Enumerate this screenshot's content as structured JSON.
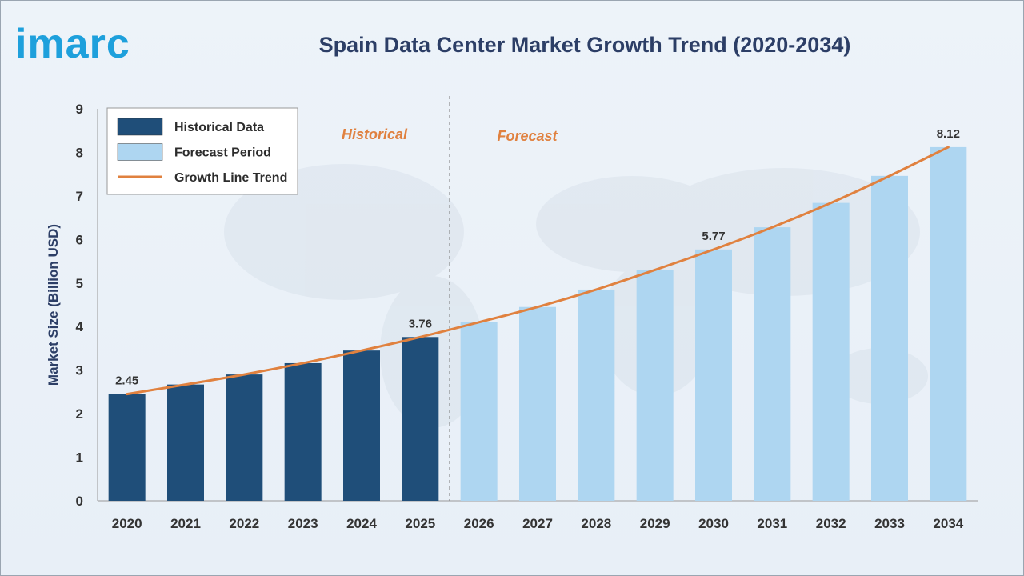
{
  "brand": {
    "logo_text": "imarc"
  },
  "colors": {
    "historical": "#1f4e79",
    "forecast": "#aed6f1",
    "trend": "#e0813f",
    "accent": "#1ea0dc",
    "title": "#2c3e66"
  },
  "chart_data": {
    "type": "bar",
    "title": "Spain Data Center Market Growth Trend (2020-2034)",
    "xlabel": "",
    "ylabel": "Market Size (Billion USD)",
    "ylim": [
      0,
      9
    ],
    "yticks": [
      0,
      1,
      2,
      3,
      4,
      5,
      6,
      7,
      8,
      9
    ],
    "grid": false,
    "legend_position": "top-left",
    "categories": [
      "2020",
      "2021",
      "2022",
      "2023",
      "2024",
      "2025",
      "2026",
      "2027",
      "2028",
      "2029",
      "2030",
      "2031",
      "2032",
      "2033",
      "2034"
    ],
    "series": [
      {
        "name": "Historical Data",
        "values": [
          2.45,
          2.67,
          2.9,
          3.16,
          3.45,
          3.76,
          null,
          null,
          null,
          null,
          null,
          null,
          null,
          null,
          null
        ]
      },
      {
        "name": "Forecast Period",
        "values": [
          null,
          null,
          null,
          null,
          null,
          null,
          4.1,
          4.45,
          4.85,
          5.3,
          5.77,
          6.28,
          6.84,
          7.46,
          8.12
        ]
      },
      {
        "name": "Growth Line Trend",
        "type": "line",
        "values": [
          2.45,
          2.67,
          2.9,
          3.16,
          3.45,
          3.76,
          4.1,
          4.45,
          4.85,
          5.3,
          5.77,
          6.28,
          6.84,
          7.46,
          8.12
        ]
      }
    ],
    "data_labels": [
      {
        "category": "2020",
        "text": "2.45"
      },
      {
        "category": "2025",
        "text": "3.76"
      },
      {
        "category": "2030",
        "text": "5.77"
      },
      {
        "category": "2034",
        "text": "8.12"
      }
    ],
    "annotations": {
      "historical": "Historical",
      "forecast": "Forecast"
    }
  }
}
